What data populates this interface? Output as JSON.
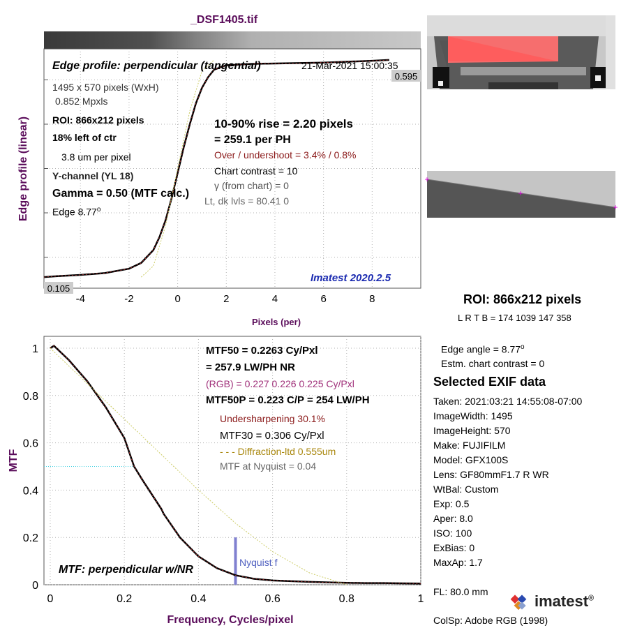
{
  "file_title": "_DSF1405.tif",
  "edge": {
    "title": "Edge profile: perpendicular (tangential)",
    "datetime": "21-Mar-2021 15:00:35",
    "top_value": "0.595",
    "bottom_value": "0.105",
    "info": {
      "pixels": "1495 x 570 pixels (WxH)",
      "mpxls": "0.852 Mpxls",
      "roi": "ROI:  866x212 pixels",
      "position": "18% left of ctr",
      "um_per_pixel": "3.8 um per pixel",
      "channel": "Y-channel  (YL 18)",
      "gamma": "Gamma = 0.50 (MTF calc.)",
      "edge_label": "Edge   8.77",
      "degree": "o"
    },
    "stats": {
      "rise": "10-90% rise = 2.20 pixels",
      "per_ph": "=  259.1 per PH",
      "overshoot": "Over / undershoot =  3.4% /  0.8%",
      "contrast": "Chart contrast = 10",
      "gamma_chart": "γ (from chart) =     0",
      "levels": "Lt, dk lvls = 80.41  0"
    },
    "version": "Imatest 2020.2.5"
  },
  "mtf": {
    "mtf50": "MTF50 = 0.2263 Cy/Pxl",
    "lwph": "= 257.9 LW/PH  NR",
    "rgb": "(RGB) = 0.227  0.226  0.225 Cy/Pxl",
    "mtf50p": "MTF50P = 0.223 C/P = 254 LW/PH",
    "undersharp": "Undersharpening 30.1%",
    "mtf30": "MTF30 = 0.306 Cy/Pxl",
    "diffraction": "- - - Diffraction-ltd  0.555um",
    "nyquist_val": "MTF at Nyquist = 0.04",
    "nyquist_label": "Nyquist f",
    "plot_title": "MTF: perpendicular w/NR"
  },
  "side": {
    "roi": "ROI:  866x212 pixels",
    "lrtb": "L R  T B = 174 1039  147 358",
    "edge_angle": "Edge angle = 8.77",
    "degree": "o",
    "estm_contrast": "Estm. chart contrast = 0",
    "exif_title": "Selected EXIF data",
    "exif": [
      "Taken: 2021:03:21 14:55:08-07:00",
      "ImageWidth:  1495",
      "ImageHeight:  570",
      "Make:  FUJIFILM",
      "Model:  GFX100S",
      "Lens:   GF80mmF1.7 R WR",
      "WtBal:  Custom",
      "Exp:    0.5",
      "Aper:   8.0",
      "ISO:    100",
      "ExBias:  0",
      "MaxAp:  1.7"
    ],
    "fl": "FL:      80.0 mm",
    "colsp": "ColSp:  Adobe RGB (1998)",
    "logo": "imatest",
    "logo_mark": "®"
  },
  "chart_data": [
    {
      "type": "line",
      "xlabel": "Pixels (per)",
      "ylabel": "Edge profile (linear)",
      "xlim": [
        -5.5,
        10
      ],
      "ylim": [
        0.08,
        0.62
      ],
      "xticks": [
        -4,
        -2,
        0,
        2,
        4,
        6,
        8
      ],
      "xtick_labels": [
        "-4",
        "-2",
        "0",
        "2",
        "4",
        "6",
        "8"
      ],
      "grid": true,
      "series": [
        {
          "x": [
            -5.5,
            -5,
            -4,
            -3,
            -2,
            -1.5,
            -1,
            -0.75,
            -0.5,
            -0.25,
            0,
            0.25,
            0.5,
            0.75,
            1,
            1.25,
            1.5,
            2,
            3,
            4,
            5,
            6,
            7,
            8,
            8.7
          ],
          "y": [
            0.105,
            0.107,
            0.11,
            0.114,
            0.124,
            0.137,
            0.166,
            0.195,
            0.233,
            0.283,
            0.34,
            0.398,
            0.45,
            0.497,
            0.532,
            0.556,
            0.573,
            0.583,
            0.586,
            0.587,
            0.588,
            0.589,
            0.591,
            0.593,
            0.595
          ],
          "color": "#000000"
        },
        {
          "x": [
            -1.5,
            -1,
            -0.5,
            0,
            0.5,
            1,
            1.5
          ],
          "y": [
            0.105,
            0.13,
            0.22,
            0.35,
            0.48,
            0.57,
            0.595
          ],
          "color": "#cccc66",
          "dash": true
        }
      ]
    },
    {
      "type": "line",
      "xlabel": "Frequency, Cycles/pixel",
      "ylabel": "MTF",
      "xlim": [
        0,
        1
      ],
      "ylim": [
        0,
        1.05
      ],
      "xticks": [
        0,
        0.2,
        0.4,
        0.6,
        0.8,
        1
      ],
      "xtick_labels": [
        "0",
        "0.2",
        "0.4",
        "0.6",
        "0.8",
        "1"
      ],
      "yticks": [
        0,
        0.2,
        0.4,
        0.6,
        0.8,
        1
      ],
      "ytick_labels": [
        "0",
        "0.2",
        "0.4",
        "0.6",
        "0.8",
        "1"
      ],
      "grid": true,
      "nyquist_x": 0.5,
      "series": [
        {
          "x": [
            0,
            0.01,
            0.05,
            0.1,
            0.15,
            0.2,
            0.2263,
            0.25,
            0.3,
            0.306,
            0.35,
            0.4,
            0.45,
            0.5,
            0.55,
            0.6,
            0.65,
            0.7,
            0.75,
            0.8,
            0.85,
            0.9,
            0.95,
            1.0
          ],
          "y": [
            1.0,
            1.01,
            0.95,
            0.86,
            0.75,
            0.62,
            0.5,
            0.44,
            0.32,
            0.3,
            0.2,
            0.12,
            0.07,
            0.04,
            0.025,
            0.018,
            0.015,
            0.012,
            0.01,
            0.008,
            0.007,
            0.007,
            0.006,
            0.005
          ],
          "color": "#000000"
        },
        {
          "x": [
            0,
            0.1,
            0.2,
            0.3,
            0.4,
            0.5,
            0.6,
            0.7,
            0.8
          ],
          "y": [
            1.0,
            0.85,
            0.7,
            0.55,
            0.4,
            0.26,
            0.14,
            0.05,
            0.0
          ],
          "color": "#cccc66",
          "dash": true
        }
      ]
    }
  ]
}
